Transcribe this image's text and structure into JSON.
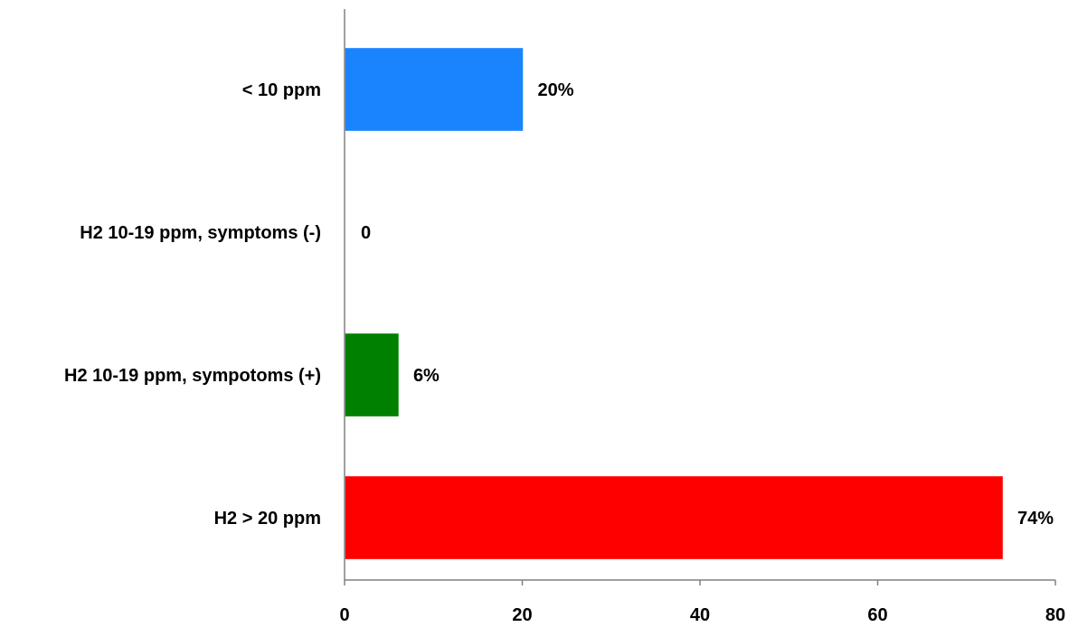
{
  "chart_data": {
    "type": "bar",
    "orientation": "horizontal",
    "categories": [
      "< 10 ppm",
      "H2 10-19 ppm, symptoms (-)",
      "H2 10-19 ppm, sympotoms (+)",
      "H2 > 20 ppm"
    ],
    "values": [
      20,
      0,
      6,
      74
    ],
    "data_labels": [
      "20%",
      "0",
      "6%",
      "74%"
    ],
    "colors": [
      "#1a84ff",
      "#ffffff",
      "#008000",
      "#ff0000"
    ],
    "xlim": [
      0,
      80
    ],
    "xticks": [
      0,
      20,
      40,
      60,
      80
    ],
    "tick_labels": [
      "0",
      "20",
      "40",
      "60",
      "80"
    ],
    "title": "",
    "xlabel": "",
    "ylabel": "",
    "grid": false,
    "legend": "none"
  }
}
